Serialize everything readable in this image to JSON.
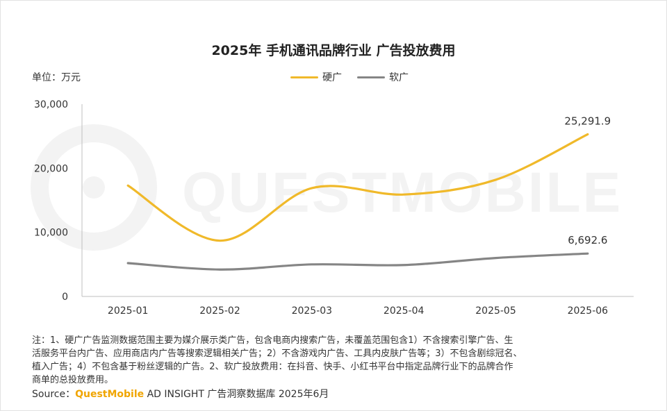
{
  "chart_data": {
    "type": "line",
    "title": "2025年 手机通讯品牌行业 广告投放费用",
    "unit_label": "单位：万元",
    "categories": [
      "2025-01",
      "2025-02",
      "2025-03",
      "2025-04",
      "2025-05",
      "2025-06"
    ],
    "series": [
      {
        "name": "硬广",
        "color": "#f0b92a",
        "values": [
          17300,
          8700,
          16900,
          15900,
          18200,
          25291.9
        ]
      },
      {
        "name": "软广",
        "color": "#858585",
        "values": [
          5200,
          4200,
          5000,
          4900,
          6000,
          6692.6
        ]
      }
    ],
    "data_labels": [
      {
        "series": 0,
        "index": 5,
        "text": "25,291.9"
      },
      {
        "series": 1,
        "index": 5,
        "text": "6,692.6"
      }
    ],
    "y_ticks": [
      0,
      10000,
      20000,
      30000
    ],
    "y_tick_labels": [
      "0",
      "10,000",
      "20,000",
      "30,000"
    ],
    "ylim": [
      0,
      30000
    ],
    "grid": false,
    "legend_position": "top-center"
  },
  "notes": [
    "注：1、硬广广告监测数据范围主要为媒介展示类广告，包含电商内搜索广告，未覆盖范围包含1）不含搜索引擎广告、生",
    "活服务平台内广告、应用商店内广告等搜索逻辑相关广告；2）不含游戏内广告、工具内皮肤广告等；3）不包含剧综冠名、",
    "植入广告；4）不包含基于粉丝逻辑的广告。2、软广投放费用：在抖音、快手、小红书平台中指定品牌行业下的品牌合作",
    "商单的总投放费用。"
  ],
  "source": {
    "prefix": "Source：",
    "brand": "QuestMobile",
    "rest": " AD INSIGHT 广告洞察数据库 2025年6月"
  },
  "watermark": "QUESTMOBILE"
}
